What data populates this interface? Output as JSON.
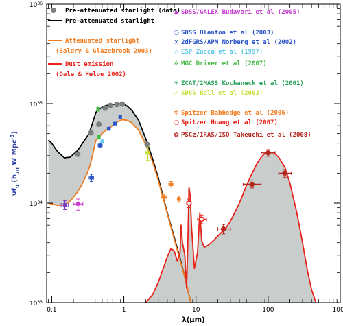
{
  "chart_data": {
    "type": "line",
    "xlabel": "λ(μm)",
    "ylabel_main": "νf",
    "ylabel_sub": "ν",
    "ylabel_rest": " (h",
    "ylabel_sub2": "70",
    "ylabel_end": " W Mpc",
    "ylabel_sup": "-3",
    "ylabel_close": ")",
    "xscale": "log",
    "yscale": "log",
    "xlim": [
      0.085,
      1000
    ],
    "ylim": [
      1e+33,
      1e+36
    ],
    "x_ticks": [
      {
        "v": 0.1,
        "label": "0.1"
      },
      {
        "v": 1,
        "label": "1"
      },
      {
        "v": 10,
        "label": "10"
      },
      {
        "v": 100,
        "label": "100"
      },
      {
        "v": 1000,
        "label": "1000"
      }
    ],
    "y_ticks": [
      {
        "v": 1e+33,
        "base": "10",
        "exp": "33"
      },
      {
        "v": 1e+34,
        "base": "10",
        "exp": "34"
      },
      {
        "v": 1e+35,
        "base": "10",
        "exp": "35"
      },
      {
        "v": 1e+36,
        "base": "10",
        "exp": "36"
      }
    ],
    "curves": [
      {
        "key": "pre",
        "color": "#000000",
        "points": [
          [
            0.09,
            4.3e+34
          ],
          [
            0.1,
            4e+34
          ],
          [
            0.12,
            3.3e+34
          ],
          [
            0.15,
            2.85e+34
          ],
          [
            0.18,
            2.9e+34
          ],
          [
            0.23,
            3.4e+34
          ],
          [
            0.28,
            4.2e+34
          ],
          [
            0.33,
            5e+34
          ],
          [
            0.37,
            6.5e+34
          ],
          [
            0.41,
            8.2e+34
          ],
          [
            0.45,
            8.8e+34
          ],
          [
            0.55,
            9.5e+34
          ],
          [
            0.65,
            9.8e+34
          ],
          [
            0.8,
            9.9e+34
          ],
          [
            0.95,
            1e+35
          ],
          [
            1.1,
            9.5e+34
          ],
          [
            1.3,
            8.5e+34
          ],
          [
            1.6,
            6.8e+34
          ],
          [
            2.0,
            4.5e+34
          ],
          [
            2.5,
            2.8e+34
          ],
          [
            3.0,
            1.8e+34
          ],
          [
            4.0,
            8e+33
          ],
          [
            5.0,
            4.5e+33
          ],
          [
            6.0,
            2.8e+33
          ],
          [
            7.0,
            1.8e+33
          ],
          [
            8.0,
            1.2e+33
          ],
          [
            8.5,
            1e+33
          ]
        ]
      },
      {
        "key": "att",
        "color": "#ef7d22",
        "points": [
          [
            0.09,
            1e+34
          ],
          [
            0.1,
            9.8e+33
          ],
          [
            0.12,
            9.5e+33
          ],
          [
            0.15,
            9.6e+33
          ],
          [
            0.18,
            1.05e+34
          ],
          [
            0.22,
            1.25e+34
          ],
          [
            0.25,
            1.45e+34
          ],
          [
            0.28,
            1.7e+34
          ],
          [
            0.31,
            2e+34
          ],
          [
            0.34,
            2.4e+34
          ],
          [
            0.37,
            3.1e+34
          ],
          [
            0.41,
            4.3e+34
          ],
          [
            0.45,
            4.6e+34
          ],
          [
            0.5,
            5e+34
          ],
          [
            0.6,
            5.6e+34
          ],
          [
            0.7,
            6e+34
          ],
          [
            0.8,
            6.5e+34
          ],
          [
            0.95,
            6.9e+34
          ],
          [
            1.1,
            6.8e+34
          ],
          [
            1.3,
            6.4e+34
          ],
          [
            1.6,
            5.4e+34
          ],
          [
            2.0,
            3.9e+34
          ],
          [
            2.5,
            2.6e+34
          ],
          [
            3.0,
            1.7e+34
          ],
          [
            4.0,
            7.8e+33
          ],
          [
            5.0,
            4.3e+33
          ],
          [
            6.0,
            2.7e+33
          ],
          [
            7.0,
            1.8e+33
          ],
          [
            8.0,
            1.2e+33
          ],
          [
            8.5,
            1e+33
          ]
        ]
      },
      {
        "key": "dust",
        "color": "#e8231c",
        "points": [
          [
            2.0,
            1e+33
          ],
          [
            2.5,
            1.2e+33
          ],
          [
            3.0,
            1.6e+33
          ],
          [
            3.5,
            2.2e+33
          ],
          [
            4.0,
            2.9e+33
          ],
          [
            4.5,
            3.5e+33
          ],
          [
            5.0,
            3.3e+33
          ],
          [
            5.5,
            2.6e+33
          ],
          [
            6.0,
            3.2e+33
          ],
          [
            6.2,
            6e+33
          ],
          [
            6.5,
            4e+33
          ],
          [
            7.0,
            3e+33
          ],
          [
            7.4,
            1.4e+33
          ],
          [
            7.7,
            4e+33
          ],
          [
            8.0,
            1.45e+34
          ],
          [
            8.3,
            1.2e+34
          ],
          [
            8.7,
            5.5e+33
          ],
          [
            9.5,
            2.2e+33
          ],
          [
            10.5,
            3.2e+33
          ],
          [
            11.3,
            8e+33
          ],
          [
            12.0,
            4.2e+33
          ],
          [
            13.0,
            3.6e+33
          ],
          [
            15.0,
            3.8e+33
          ],
          [
            18.0,
            4.3e+33
          ],
          [
            22.0,
            5e+33
          ],
          [
            26.0,
            5.6e+33
          ],
          [
            30.0,
            6.6e+33
          ],
          [
            40.0,
            1e+34
          ],
          [
            50.0,
            1.5e+34
          ],
          [
            60.0,
            2e+34
          ],
          [
            70.0,
            2.5e+34
          ],
          [
            80.0,
            2.9e+34
          ],
          [
            90.0,
            3.15e+34
          ],
          [
            100.0,
            3.25e+34
          ],
          [
            120.0,
            3.2e+34
          ],
          [
            140.0,
            2.9e+34
          ],
          [
            170.0,
            2.3e+34
          ],
          [
            200.0,
            1.6e+34
          ],
          [
            250.0,
            8e+33
          ],
          [
            300.0,
            4e+33
          ],
          [
            350.0,
            2.1e+33
          ],
          [
            400.0,
            1.35e+33
          ],
          [
            460.0,
            1e+33
          ]
        ]
      }
    ],
    "gray_data": [
      [
        0.23,
        3.1e+34
      ],
      [
        0.35,
        5.1e+34
      ],
      [
        0.45,
        6.2e+34
      ],
      [
        0.55,
        9e+34
      ],
      [
        0.65,
        9.6e+34
      ],
      [
        0.8,
        9.8e+34
      ],
      [
        0.95,
        9.9e+34
      ],
      [
        2.1,
        3.9e+34
      ]
    ],
    "observations": [
      {
        "color": "#7a3bbf",
        "marker": "square",
        "x": 0.152,
        "y": 9.6e+33,
        "xerr": [
          0.135,
          0.17
        ],
        "yerr": [
          8.6e+33,
          1.06e+34
        ]
      },
      {
        "color": "#cc3bcc",
        "marker": "square",
        "x": 0.231,
        "y": 9.8e+33,
        "xerr": [
          0.2,
          0.27
        ],
        "yerr": [
          8.5e+33,
          1.1e+34
        ]
      },
      {
        "color": "#2b55c7",
        "marker": "square",
        "x": 0.355,
        "y": 1.8e+34,
        "xerr": [
          0.33,
          0.38
        ],
        "yerr": [
          1.65e+34,
          1.95e+34
        ]
      },
      {
        "color": "#2b55c7",
        "marker": "square",
        "x": 0.47,
        "y": 3.8e+34,
        "xerr": [
          0.44,
          0.5
        ],
        "yerr": [
          3.6e+34,
          4e+34
        ]
      },
      {
        "color": "#2b55c7",
        "marker": "square",
        "x": 0.62,
        "y": 5.6e+34,
        "xerr": [
          0.59,
          0.65
        ],
        "yerr": [
          5.4e+34,
          5.8e+34
        ]
      },
      {
        "color": "#2b55c7",
        "marker": "square",
        "x": 0.75,
        "y": 6.3e+34,
        "xerr": [
          0.72,
          0.78
        ],
        "yerr": [
          6.1e+34,
          6.5e+34
        ]
      },
      {
        "color": "#2b55c7",
        "marker": "square",
        "x": 0.89,
        "y": 7.3e+34,
        "xerr": [
          0.86,
          0.92
        ],
        "yerr": [
          7e+34,
          7.6e+34
        ]
      },
      {
        "color": "#49b849",
        "marker": "square",
        "x": 0.45,
        "y": 4.6e+34,
        "xerr": [
          0.43,
          0.47
        ],
        "yerr": [
          4.4e+34,
          4.8e+34
        ]
      },
      {
        "color": "#49b849",
        "marker": "square",
        "x": 0.44,
        "y": 8.8e+34,
        "xerr": [
          0.42,
          0.46
        ],
        "yerr": [
          8.4e+34,
          9.2e+34
        ]
      },
      {
        "color": "#61c7e8",
        "marker": "triangle",
        "x": 0.5,
        "y": 4.2e+34,
        "xerr": [
          0.48,
          0.52
        ],
        "yerr": [
          4e+34,
          4.4e+34
        ]
      },
      {
        "color": "#c9dd3a",
        "marker": "square",
        "x": 2.15,
        "y": 3.2e+34,
        "xerr": [
          2.0,
          2.3
        ],
        "yerr": [
          2.7e+34,
          3.7e+34
        ]
      },
      {
        "color": "#ef7d22",
        "marker": "square",
        "x": 3.6,
        "y": 1.15e+34,
        "xerr": [
          3.3,
          3.9
        ],
        "yerr": [
          1.07e+34,
          1.23e+34
        ]
      },
      {
        "color": "#ef7d22",
        "marker": "square",
        "x": 4.5,
        "y": 1.55e+34,
        "xerr": [
          4.2,
          4.8
        ],
        "yerr": [
          1.45e+34,
          1.65e+34
        ]
      },
      {
        "color": "#ef7d22",
        "marker": "square",
        "x": 5.8,
        "y": 1.1e+34,
        "xerr": [
          5.5,
          6.1
        ],
        "yerr": [
          1.02e+34,
          1.18e+34
        ]
      },
      {
        "color": "#e8231c",
        "marker": "circle",
        "x": 8.0,
        "y": 1e+34,
        "xerr": [
          7.4,
          8.6
        ],
        "yerr": [
          9e+33,
          1.1e+34
        ]
      },
      {
        "color": "#e8231c",
        "marker": "circle",
        "x": 12.0,
        "y": 6.9e+33,
        "xerr": [
          10.5,
          14.0
        ],
        "yerr": [
          6.2e+33,
          7.6e+33
        ]
      },
      {
        "color": "#b5261e",
        "marker": "hex",
        "x": 24.0,
        "y": 5.5e+33,
        "xerr": [
          20.0,
          30.0
        ],
        "yerr": [
          4.9e+33,
          6.1e+33
        ]
      },
      {
        "color": "#b5261e",
        "marker": "hex",
        "x": 60.0,
        "y": 1.55e+34,
        "xerr": [
          45.0,
          80.0
        ],
        "yerr": [
          1.42e+34,
          1.68e+34
        ]
      },
      {
        "color": "#b5261e",
        "marker": "hex",
        "x": 100.0,
        "y": 3.2e+34,
        "xerr": [
          80.0,
          125.0
        ],
        "yerr": [
          2.95e+34,
          3.45e+34
        ]
      },
      {
        "color": "#b5261e",
        "marker": "hex",
        "x": 170.0,
        "y": 2e+34,
        "xerr": [
          140.0,
          210.0
        ],
        "yerr": [
          1.82e+34,
          2.18e+34
        ]
      }
    ]
  },
  "legend_left": [
    {
      "text": "Pre-attenuated starlight (data)",
      "color": "#000000",
      "marker": "gray-dot",
      "weight": "normal"
    },
    {
      "text": "Pre-attenuated starlight",
      "color": "#000000",
      "marker": "black-line",
      "weight": "bold"
    },
    {
      "text": "Attenuated starlight",
      "color": "#ef7d22",
      "marker": "orange-line",
      "weight": "bold"
    },
    {
      "text": "(Baldry & Glazebrook 2003)",
      "color": "#ef7d22",
      "marker": "",
      "weight": "bold"
    },
    {
      "text": "Dust emission",
      "color": "#e8231c",
      "marker": "red-line",
      "weight": "bold"
    },
    {
      "text": "(Dale & Helou 2002)",
      "color": "#e8231c",
      "marker": "",
      "weight": "bold"
    }
  ],
  "legend_right": [
    {
      "symbol": "▲",
      "text": "SDSS/GALEX Budavari et al (2005)",
      "color": "#c23bcc"
    },
    {
      "symbol": "○",
      "text": "SDSS Blanton et al (2003)",
      "color": "#2b55c7"
    },
    {
      "symbol": "×",
      "text": "2dFGRS/APM Norberg et al (2002)",
      "color": "#2b55c7"
    },
    {
      "symbol": "△",
      "text": "ESP Zucca et al (1997)",
      "color": "#61c7e8"
    },
    {
      "symbol": "✲",
      "text": "MGC Driver et al (2007)",
      "color": "#49b849"
    },
    {
      "symbol": "✳",
      "text": "ZCAT/2MASS Kochaneck et al (2001)",
      "color": "#2aa05a"
    },
    {
      "symbol": "△",
      "text": "SDSS Bell et al (2003)",
      "color": "#c9dd3a"
    },
    {
      "symbol": "✲",
      "text": "Spitzer Babbedge et al (2006)",
      "color": "#ef7d22"
    },
    {
      "symbol": "○",
      "text": "Spitzer Huang et al (2007)",
      "color": "#e8231c"
    },
    {
      "symbol": "✿",
      "text": "PSCz/IRAS/ISO Takeuchi et al (2008)",
      "color": "#b5261e"
    }
  ]
}
